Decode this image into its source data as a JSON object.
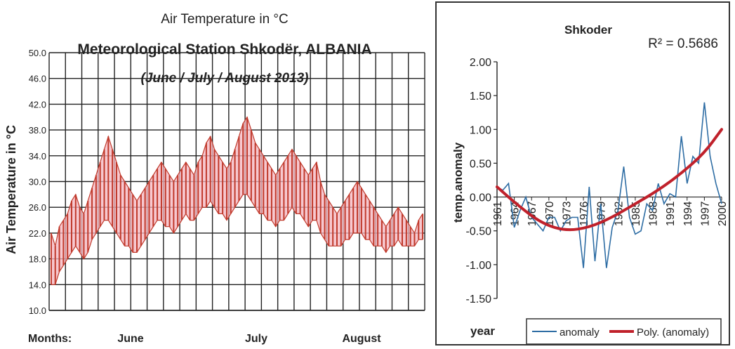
{
  "chart_data": [
    {
      "type": "line",
      "title": "Air Temperature in °C",
      "subtitle": "Meteorological Station Shkodër, ALBANIA",
      "period": "(June / July / August 2013)",
      "ylabel": "Air Temperature in °C",
      "ylim": [
        10.0,
        50.0
      ],
      "yticks": [
        "10.0",
        "14.0",
        "18.0",
        "22.0",
        "26.0",
        "30.0",
        "34.0",
        "38.0",
        "42.0",
        "46.0",
        "50.0"
      ],
      "months_label": "Months:",
      "months": [
        "June",
        "July",
        "August"
      ],
      "series": [
        {
          "color": "#c0392b",
          "day": [
            1,
            2,
            3,
            4,
            5,
            6,
            7,
            8,
            9,
            10,
            11,
            12,
            13,
            14,
            15,
            16,
            17,
            18,
            19,
            20,
            21,
            22,
            23,
            24,
            25,
            26,
            27,
            28,
            29,
            30,
            31,
            32,
            33,
            34,
            35,
            36,
            37,
            38,
            39,
            40,
            41,
            42,
            43,
            44,
            45,
            46,
            47,
            48,
            49,
            50,
            51,
            52,
            53,
            54,
            55,
            56,
            57,
            58,
            59,
            60,
            61,
            62,
            63,
            64,
            65,
            66,
            67,
            68,
            69,
            70,
            71,
            72,
            73,
            74,
            75,
            76,
            77,
            78,
            79,
            80,
            81,
            82,
            83,
            84,
            85,
            86,
            87,
            88,
            89,
            90,
            91,
            92
          ],
          "max": [
            22,
            20,
            23,
            24,
            25,
            27,
            28,
            26,
            25,
            27,
            29,
            31,
            33,
            35,
            37,
            35,
            33,
            31,
            30,
            29,
            28,
            27,
            28,
            29,
            30,
            31,
            32,
            33,
            32,
            31,
            30,
            31,
            32,
            33,
            32,
            31,
            33,
            34,
            36,
            37,
            35,
            34,
            33,
            32,
            33,
            35,
            37,
            39,
            40,
            38,
            36,
            35,
            34,
            33,
            32,
            31,
            32,
            33,
            34,
            35,
            34,
            33,
            32,
            31,
            32,
            33,
            30,
            28,
            27,
            26,
            25,
            26,
            27,
            28,
            29,
            30,
            29,
            28,
            27,
            26,
            25,
            24,
            23,
            24,
            25,
            26,
            25,
            24,
            23,
            22,
            24,
            25
          ],
          "min": [
            14,
            14,
            16,
            17,
            18,
            19,
            20,
            19,
            18,
            19,
            21,
            22,
            23,
            24,
            24,
            23,
            22,
            21,
            20,
            20,
            19,
            19,
            20,
            21,
            22,
            23,
            24,
            24,
            23,
            23,
            22,
            23,
            24,
            25,
            24,
            24,
            25,
            26,
            26,
            27,
            26,
            25,
            25,
            24,
            25,
            26,
            27,
            28,
            28,
            27,
            26,
            25,
            25,
            24,
            24,
            23,
            24,
            24,
            25,
            26,
            25,
            25,
            24,
            23,
            24,
            24,
            22,
            21,
            20,
            20,
            20,
            20,
            21,
            21,
            22,
            22,
            22,
            21,
            21,
            20,
            20,
            20,
            19,
            20,
            20,
            21,
            20,
            20,
            20,
            20,
            21,
            21
          ]
        }
      ]
    },
    {
      "type": "line",
      "title": "Shkoder",
      "r2_label": "R² = 0.5686",
      "ylabel": "temp.anomaly",
      "xlabel": "year",
      "ylim": [
        -1.5,
        2.0
      ],
      "yticks": [
        "-1.50",
        "-1.00",
        "-0.50",
        "0.00",
        "0.50",
        "1.00",
        "1.50",
        "2.00"
      ],
      "xticks": [
        "1961",
        "1964",
        "1967",
        "1970",
        "1973",
        "1976",
        "1979",
        "1982",
        "1985",
        "1988",
        "1991",
        "1994",
        "1997",
        "2000"
      ],
      "series": [
        {
          "name": "anomaly",
          "color": "#2e6da4",
          "x": [
            1961,
            1962,
            1963,
            1964,
            1965,
            1966,
            1967,
            1968,
            1969,
            1970,
            1971,
            1972,
            1973,
            1974,
            1975,
            1976,
            1977,
            1978,
            1979,
            1980,
            1981,
            1982,
            1983,
            1984,
            1985,
            1986,
            1987,
            1988,
            1989,
            1990,
            1991,
            1992,
            1993,
            1994,
            1995,
            1996,
            1997,
            1998,
            1999,
            2000
          ],
          "y": [
            0.15,
            0.1,
            0.2,
            -0.45,
            -0.2,
            0.0,
            -0.3,
            -0.4,
            -0.5,
            -0.3,
            -0.3,
            -0.5,
            -0.35,
            -0.3,
            -0.3,
            -1.05,
            0.15,
            -0.95,
            -0.1,
            -1.05,
            -0.45,
            -0.2,
            0.45,
            -0.3,
            -0.55,
            -0.5,
            -0.1,
            -0.2,
            0.2,
            -0.1,
            0.05,
            0.0,
            0.9,
            0.2,
            0.6,
            0.5,
            1.4,
            0.6,
            0.2,
            -0.1
          ]
        },
        {
          "name": "Poly. (anomaly)",
          "color": "#c0212b",
          "x": [
            1961,
            1965,
            1969,
            1973,
            1977,
            1981,
            1985,
            1989,
            1993,
            1997,
            2000
          ],
          "y": [
            0.15,
            -0.15,
            -0.4,
            -0.5,
            -0.45,
            -0.3,
            -0.1,
            0.1,
            0.35,
            0.65,
            1.0
          ]
        }
      ],
      "legend_position": "bottom-right"
    }
  ]
}
